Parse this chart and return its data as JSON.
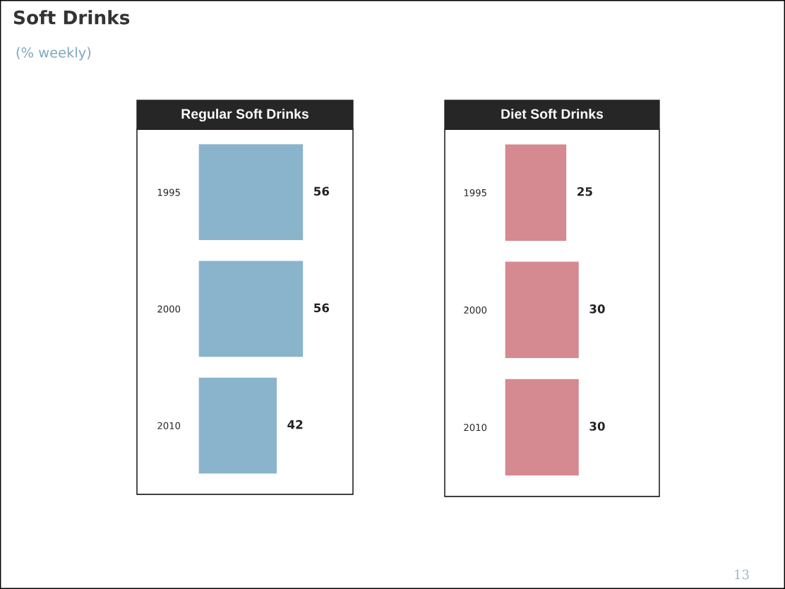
{
  "chart_data": [
    {
      "type": "bar",
      "orientation": "horizontal",
      "title": "Regular Soft Drinks",
      "categories": [
        "1995",
        "2000",
        "2010"
      ],
      "values": [
        56,
        56,
        42
      ],
      "color": "#8ab4cc",
      "xlim": [
        0,
        82
      ],
      "data_labels": true,
      "tick_labels": "y",
      "grid": false,
      "legend": false,
      "annotations": [
        "Soft Drinks",
        "(% weekly)",
        "13"
      ]
    },
    {
      "type": "bar",
      "orientation": "horizontal",
      "title": "Diet Soft Drinks",
      "categories": [
        "1995",
        "2000",
        "2010"
      ],
      "values": [
        25,
        30,
        30
      ],
      "color": "#d48a90",
      "xlim": [
        0,
        62
      ],
      "data_labels": true,
      "tick_labels": "y",
      "grid": false,
      "legend": false
    }
  ]
}
